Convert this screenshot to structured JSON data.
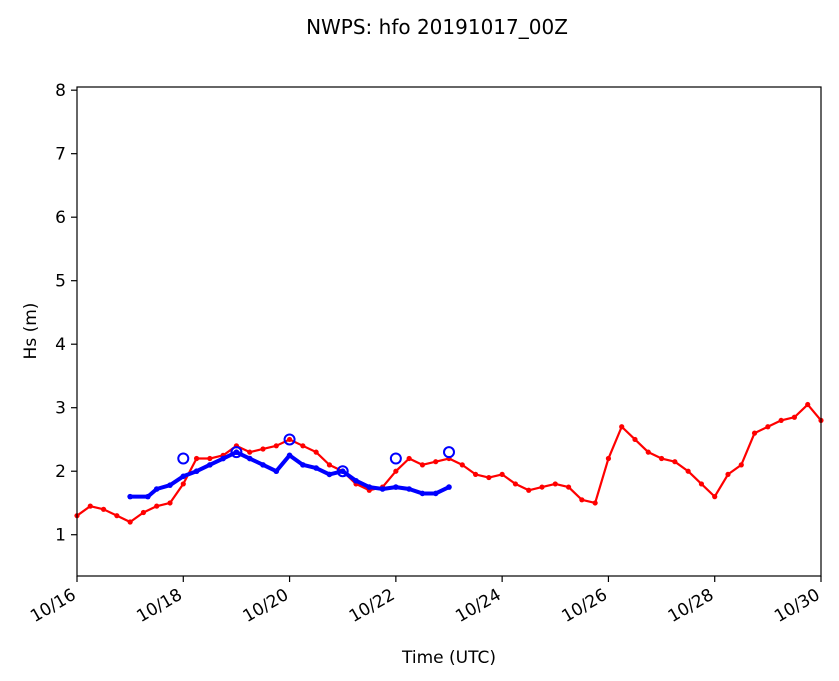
{
  "chart_data": {
    "type": "line",
    "title": "NWPS: hfo 20191017_00Z",
    "xlabel": "Time (UTC)",
    "ylabel": "Hs (m)",
    "x_unit": "days",
    "xlim": [
      "10/16",
      "10/30"
    ],
    "ylim": [
      0.35,
      8.05
    ],
    "x_ticks": [
      "10/16",
      "10/18",
      "10/20",
      "10/22",
      "10/24",
      "10/26",
      "10/28",
      "10/30"
    ],
    "y_ticks": [
      "1",
      "2",
      "3",
      "4",
      "5",
      "6",
      "7",
      "8"
    ],
    "grid": false,
    "series": [
      {
        "color": "#ff0000",
        "style": "line-with-small-markers",
        "points": [
          [
            "10/16 00:00",
            1.3
          ],
          [
            "10/16 06:00",
            1.45
          ],
          [
            "10/16 12:00",
            1.4
          ],
          [
            "10/16 18:00",
            1.3
          ],
          [
            "10/17 00:00",
            1.2
          ],
          [
            "10/17 06:00",
            1.35
          ],
          [
            "10/17 12:00",
            1.45
          ],
          [
            "10/17 18:00",
            1.5
          ],
          [
            "10/18 00:00",
            1.8
          ],
          [
            "10/18 06:00",
            2.2
          ],
          [
            "10/18 12:00",
            2.2
          ],
          [
            "10/18 18:00",
            2.25
          ],
          [
            "10/19 00:00",
            2.4
          ],
          [
            "10/19 06:00",
            2.3
          ],
          [
            "10/19 12:00",
            2.35
          ],
          [
            "10/19 18:00",
            2.4
          ],
          [
            "10/20 00:00",
            2.5
          ],
          [
            "10/20 06:00",
            2.4
          ],
          [
            "10/20 12:00",
            2.3
          ],
          [
            "10/20 18:00",
            2.1
          ],
          [
            "10/21 00:00",
            2.0
          ],
          [
            "10/21 06:00",
            1.8
          ],
          [
            "10/21 12:00",
            1.7
          ],
          [
            "10/21 18:00",
            1.75
          ],
          [
            "10/22 00:00",
            2.0
          ],
          [
            "10/22 06:00",
            2.2
          ],
          [
            "10/22 12:00",
            2.1
          ],
          [
            "10/22 18:00",
            2.15
          ],
          [
            "10/23 00:00",
            2.2
          ],
          [
            "10/23 06:00",
            2.1
          ],
          [
            "10/23 12:00",
            1.95
          ],
          [
            "10/23 18:00",
            1.9
          ],
          [
            "10/24 00:00",
            1.95
          ],
          [
            "10/24 06:00",
            1.8
          ],
          [
            "10/24 12:00",
            1.7
          ],
          [
            "10/24 18:00",
            1.75
          ],
          [
            "10/25 00:00",
            1.8
          ],
          [
            "10/25 06:00",
            1.75
          ],
          [
            "10/25 12:00",
            1.55
          ],
          [
            "10/25 18:00",
            1.5
          ],
          [
            "10/26 00:00",
            2.2
          ],
          [
            "10/26 06:00",
            2.7
          ],
          [
            "10/26 12:00",
            2.5
          ],
          [
            "10/26 18:00",
            2.3
          ],
          [
            "10/27 00:00",
            2.2
          ],
          [
            "10/27 06:00",
            2.15
          ],
          [
            "10/27 12:00",
            2.0
          ],
          [
            "10/27 18:00",
            1.8
          ],
          [
            "10/28 00:00",
            1.6
          ],
          [
            "10/28 06:00",
            1.95
          ],
          [
            "10/28 12:00",
            2.1
          ],
          [
            "10/28 18:00",
            2.6
          ],
          [
            "10/29 00:00",
            2.7
          ],
          [
            "10/29 06:00",
            2.8
          ],
          [
            "10/29 12:00",
            2.85
          ],
          [
            "10/29 18:00",
            3.05
          ],
          [
            "10/30 00:00",
            2.8
          ]
        ]
      },
      {
        "color": "#0000ff",
        "style": "thick-line",
        "points": [
          [
            "10/17 00:00",
            1.6
          ],
          [
            "10/17 08:00",
            1.6
          ],
          [
            "10/17 12:00",
            1.72
          ],
          [
            "10/17 18:00",
            1.78
          ],
          [
            "10/18 00:00",
            1.92
          ],
          [
            "10/18 06:00",
            2.0
          ],
          [
            "10/18 12:00",
            2.1
          ],
          [
            "10/18 18:00",
            2.2
          ],
          [
            "10/19 00:00",
            2.3
          ],
          [
            "10/19 06:00",
            2.2
          ],
          [
            "10/19 12:00",
            2.1
          ],
          [
            "10/19 18:00",
            2.0
          ],
          [
            "10/20 00:00",
            2.25
          ],
          [
            "10/20 06:00",
            2.1
          ],
          [
            "10/20 12:00",
            2.05
          ],
          [
            "10/20 18:00",
            1.95
          ],
          [
            "10/21 00:00",
            2.0
          ],
          [
            "10/21 06:00",
            1.85
          ],
          [
            "10/21 12:00",
            1.75
          ],
          [
            "10/21 18:00",
            1.72
          ],
          [
            "10/22 00:00",
            1.75
          ],
          [
            "10/22 06:00",
            1.72
          ],
          [
            "10/22 12:00",
            1.65
          ],
          [
            "10/22 18:00",
            1.65
          ],
          [
            "10/23 00:00",
            1.75
          ]
        ]
      },
      {
        "color": "#0000ff",
        "style": "open-circle-markers",
        "points": [
          [
            "10/18 00:00",
            2.2
          ],
          [
            "10/19 00:00",
            2.3
          ],
          [
            "10/20 00:00",
            2.5
          ],
          [
            "10/21 00:00",
            2.0
          ],
          [
            "10/22 00:00",
            2.2
          ],
          [
            "10/23 00:00",
            2.3
          ]
        ]
      }
    ]
  }
}
